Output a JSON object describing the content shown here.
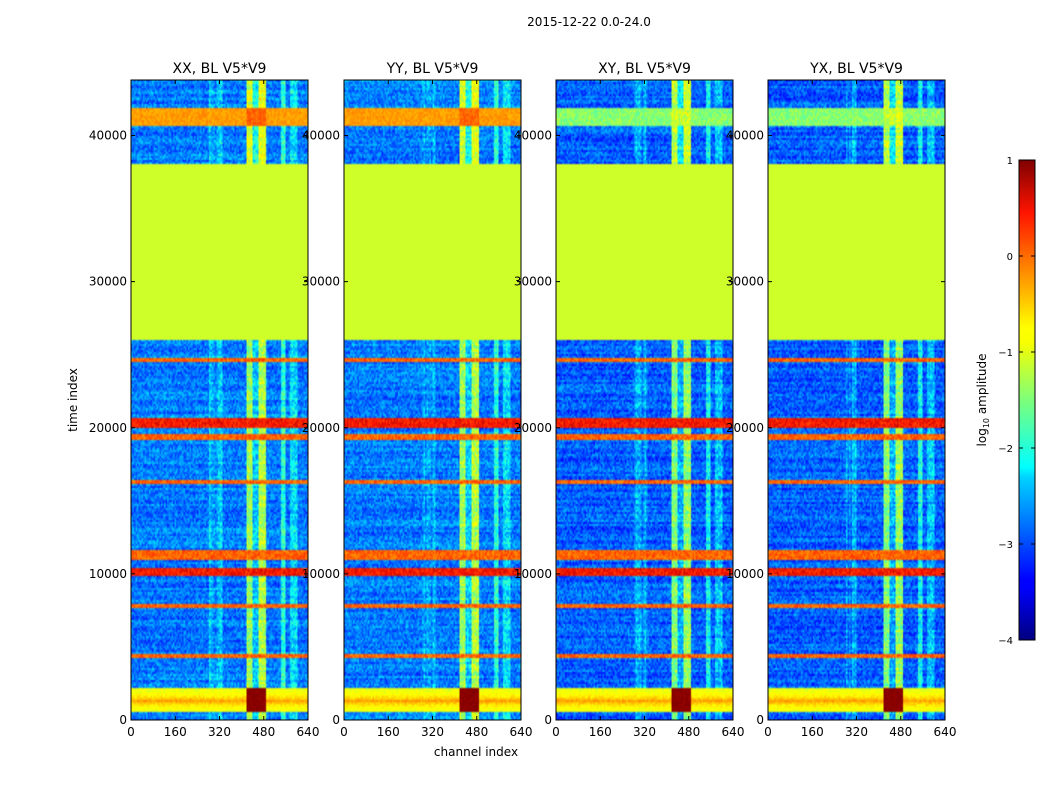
{
  "chart_data": {
    "type": "heatmap",
    "suptitle": "2015-12-22 0.0-24.0",
    "xlabel": "channel index",
    "ylabel": "time index",
    "xlim": [
      0,
      640
    ],
    "ylim": [
      0,
      43800
    ],
    "xticks": [
      0,
      160,
      320,
      480,
      640
    ],
    "yticks": [
      0,
      10000,
      20000,
      30000,
      40000
    ],
    "colorbar": {
      "label": "log",
      "label_sub": "10",
      "label_suffix": " amplitude",
      "range": [
        -4,
        1
      ],
      "ticks": [
        1,
        0,
        -1,
        -2,
        -3,
        -4
      ],
      "tick_labels": [
        "1",
        "0",
        "−1",
        "−2",
        "−3",
        "−4"
      ]
    },
    "flagged_time_range": [
      26000,
      38000
    ],
    "flagged_value": -1.1,
    "panels": [
      {
        "title": "XX, BL V5*V9"
      },
      {
        "title": "YY, BL V5*V9"
      },
      {
        "title": "XY, BL V5*V9"
      },
      {
        "title": "YX, BL V5*V9"
      }
    ]
  }
}
